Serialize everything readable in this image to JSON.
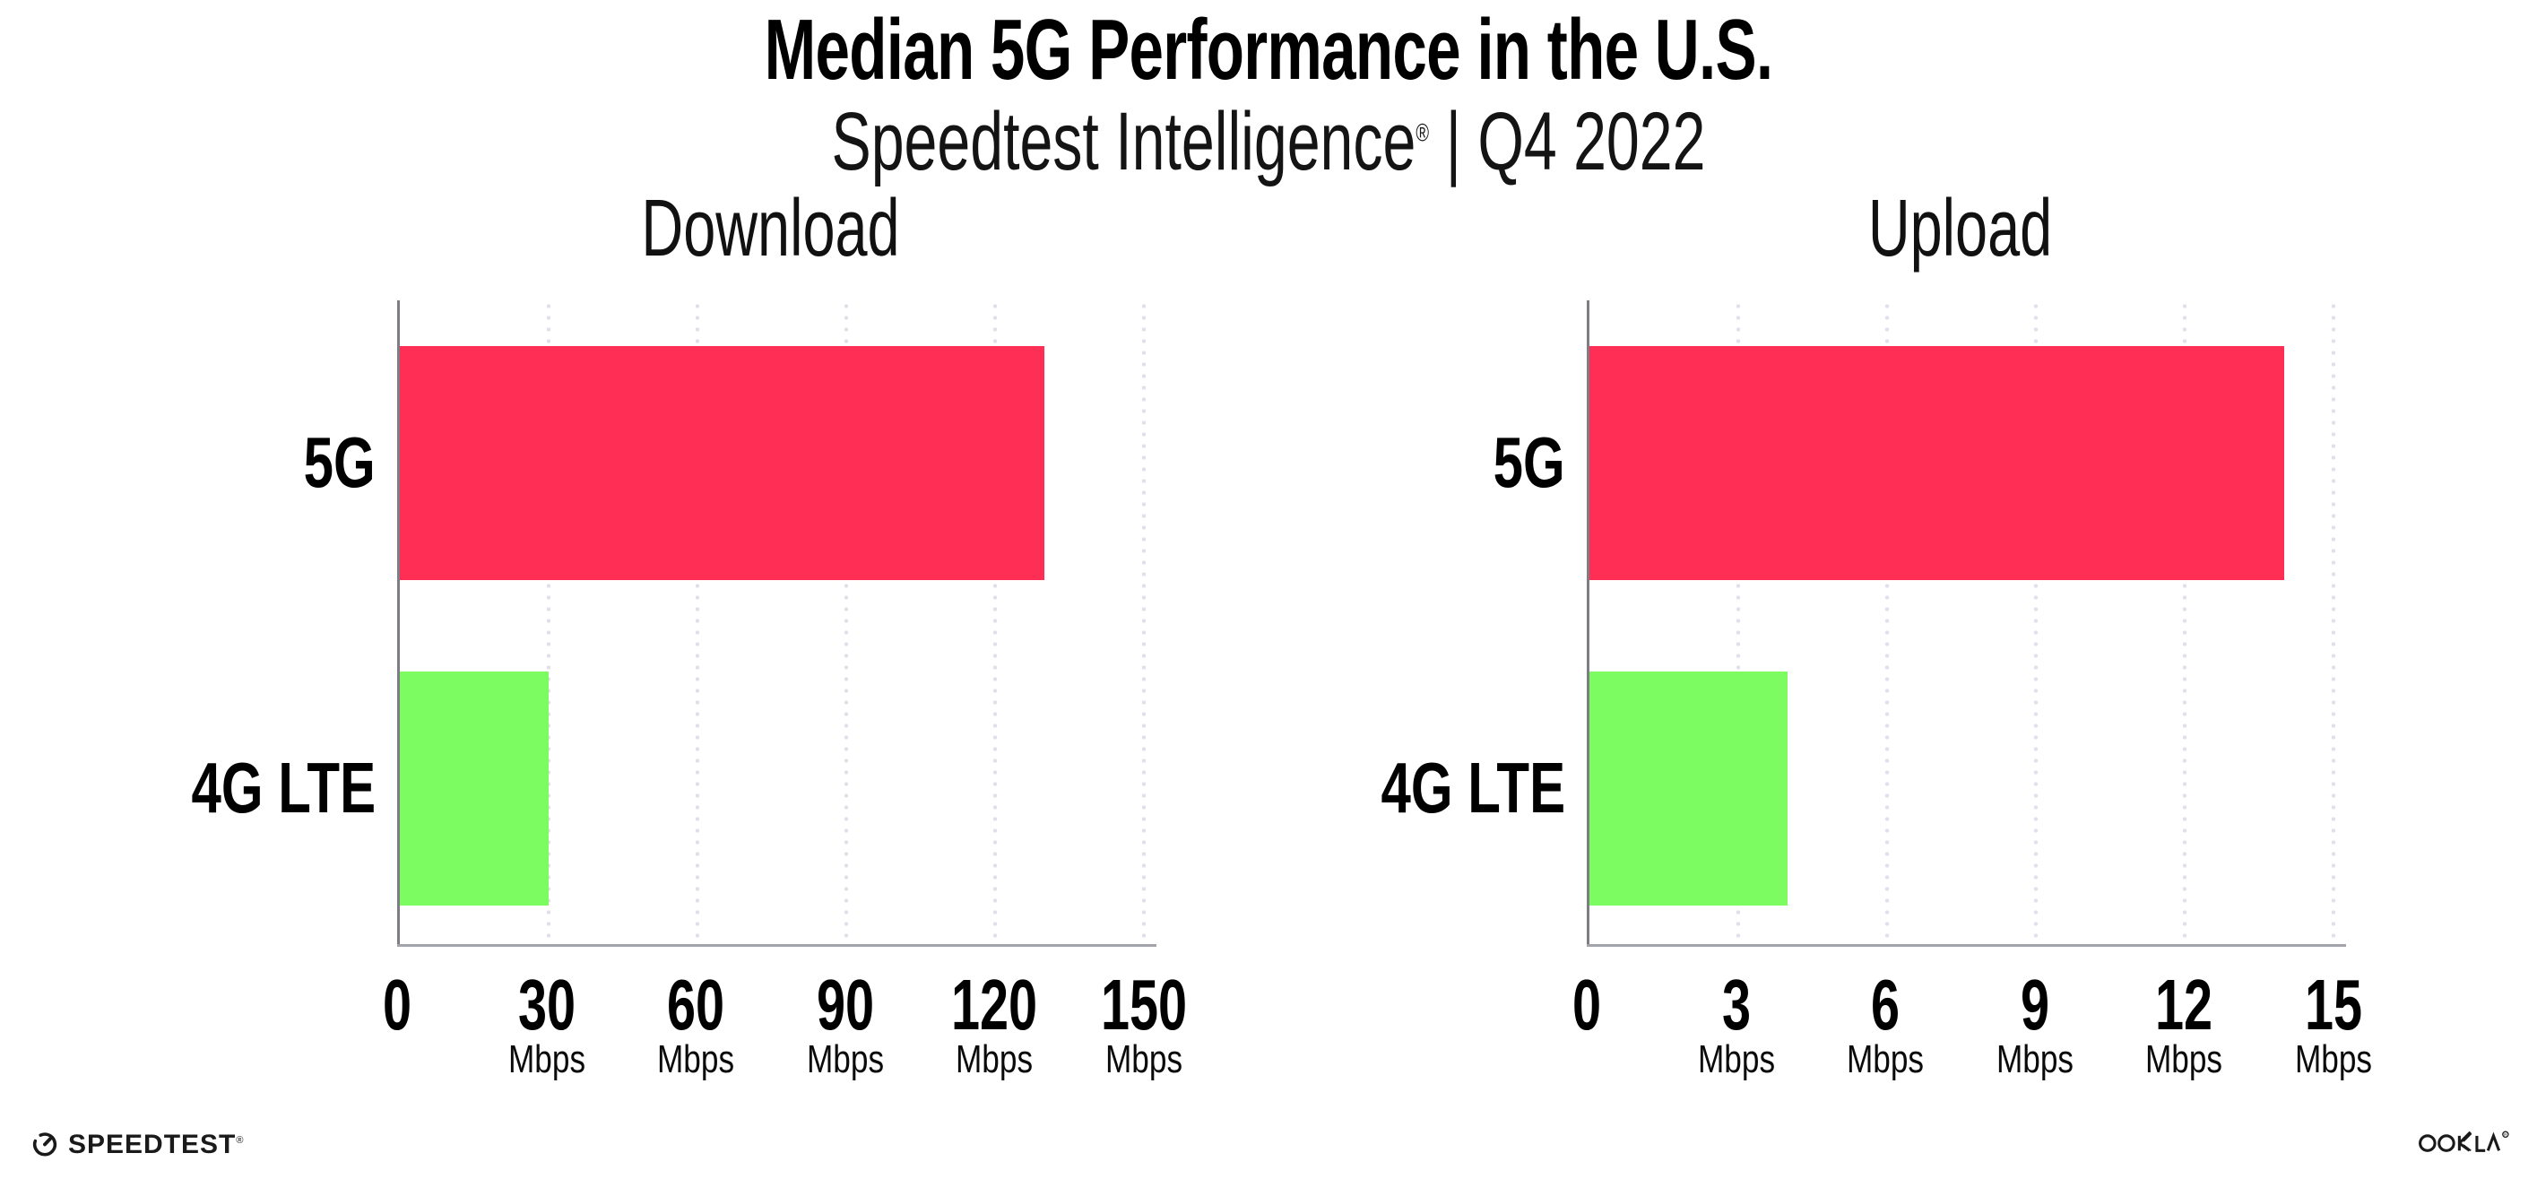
{
  "header": {
    "title": "Median 5G Performance in the U.S.",
    "subtitle_brand": "Speedtest Intelligence",
    "subtitle_reg": "®",
    "subtitle_rest": "| Q4 2022"
  },
  "chart_data": [
    {
      "type": "bar",
      "orientation": "horizontal",
      "title": "Download",
      "categories": [
        "5G",
        "4G LTE"
      ],
      "values": [
        130,
        30
      ],
      "unit": "Mbps",
      "xlim": [
        0,
        150
      ],
      "xticks": [
        0,
        30,
        60,
        90,
        120,
        150
      ],
      "bar_colors": [
        "#ff2e55",
        "#7dfc62"
      ],
      "grid": "vertical-dotted",
      "legend": "none"
    },
    {
      "type": "bar",
      "orientation": "horizontal",
      "title": "Upload",
      "categories": [
        "5G",
        "4G LTE"
      ],
      "values": [
        14,
        4
      ],
      "unit": "Mbps",
      "xlim": [
        0,
        15
      ],
      "xticks": [
        0,
        3,
        6,
        9,
        12,
        15
      ],
      "bar_colors": [
        "#ff2e55",
        "#7dfc62"
      ],
      "grid": "vertical-dotted",
      "legend": "none"
    }
  ],
  "footer": {
    "speedtest_label": "SPEEDTEST",
    "speedtest_reg": "®",
    "ookla_label": "OOKLA",
    "ookla_reg": "®"
  }
}
